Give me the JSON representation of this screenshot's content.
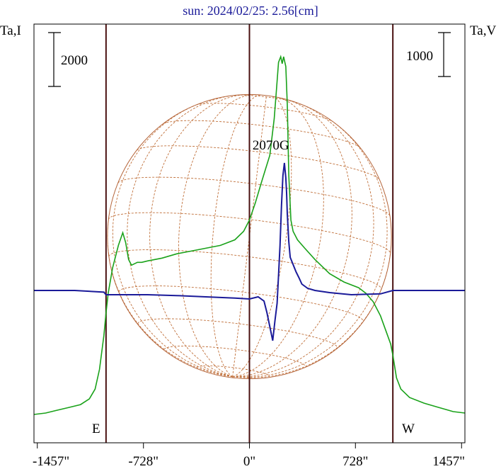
{
  "title": "sun: 2024/02/25: 2.56[cm]",
  "left_axis_label": "Ta,I",
  "right_axis_label": "Ta,V",
  "left_scale_bar": {
    "label": "2000",
    "value": 2000
  },
  "right_scale_bar": {
    "label": "1000",
    "value": 1000
  },
  "annotation": {
    "text": "2070G",
    "x": 147
  },
  "east_label": "E",
  "west_label": "W",
  "colors": {
    "stokes_i": "#1aa21a",
    "stokes_v": "#1a1a99",
    "limb_lines": "#4a1010",
    "solar_disk": "#b5653a",
    "grid": "#c0703a",
    "frame": "#000000"
  },
  "chart_data": {
    "type": "line",
    "x_unit": "arcsec",
    "xlim": [
      -1480,
      1480
    ],
    "x_ticks": [
      {
        "value": -1457,
        "label": "-1457\""
      },
      {
        "value": -728,
        "label": "-728\""
      },
      {
        "value": 0,
        "label": "0\""
      },
      {
        "value": 728,
        "label": "728\""
      },
      {
        "value": 1457,
        "label": "1457\""
      }
    ],
    "limb_lines": [
      -985,
      985
    ],
    "center_line": 0,
    "solar_radius": 985,
    "i_range": [
      -800,
      13000
    ],
    "v_range": [
      -3800,
      3800
    ],
    "series": [
      {
        "name": "Stokes I",
        "axis": "left",
        "x": [
          -1480,
          -1400,
          -1320,
          -1240,
          -1160,
          -1100,
          -1060,
          -1030,
          -1000,
          -985,
          -970,
          -940,
          -900,
          -870,
          -850,
          -830,
          -810,
          -790,
          -770,
          -740,
          -700,
          -600,
          -500,
          -400,
          -300,
          -200,
          -100,
          -40,
          0,
          40,
          80,
          110,
          140,
          170,
          185,
          200,
          215,
          225,
          235,
          250,
          260,
          270,
          285,
          300,
          330,
          380,
          450,
          550,
          650,
          750,
          800,
          850,
          900,
          935,
          970,
          985,
          1010,
          1040,
          1100,
          1200,
          1300,
          1400,
          1480
        ],
        "values": [
          0,
          50,
          150,
          250,
          350,
          550,
          900,
          1600,
          2800,
          3600,
          4300,
          5200,
          6000,
          6450,
          6100,
          5500,
          5300,
          5350,
          5400,
          5400,
          5450,
          5550,
          5700,
          5800,
          5900,
          6000,
          6200,
          6500,
          6900,
          7500,
          8200,
          8700,
          9200,
          10500,
          11500,
          12500,
          12700,
          12450,
          12700,
          12350,
          11000,
          8500,
          6900,
          6500,
          6200,
          5900,
          5500,
          5000,
          4700,
          4500,
          4300,
          4000,
          3500,
          3000,
          2500,
          2100,
          1300,
          900,
          600,
          400,
          250,
          100,
          50
        ]
      },
      {
        "name": "Stokes V",
        "axis": "right",
        "x": [
          -1480,
          -1200,
          -1000,
          -985,
          -900,
          -700,
          -500,
          -300,
          -100,
          0,
          60,
          100,
          120,
          140,
          160,
          175,
          190,
          200,
          210,
          220,
          230,
          240,
          250,
          255,
          260,
          270,
          280,
          300,
          320,
          340,
          360,
          380,
          400,
          450,
          550,
          700,
          900,
          985,
          1000,
          1200,
          1480
        ],
        "values": [
          0,
          0,
          -40,
          -100,
          -100,
          -100,
          -120,
          -150,
          -180,
          -200,
          -150,
          -250,
          -520,
          -850,
          -1180,
          -720,
          -300,
          350,
          1050,
          2000,
          2700,
          3000,
          2650,
          2300,
          1800,
          1150,
          780,
          610,
          440,
          300,
          150,
          100,
          50,
          0,
          -50,
          -100,
          -80,
          0,
          0,
          0,
          0
        ]
      }
    ]
  }
}
